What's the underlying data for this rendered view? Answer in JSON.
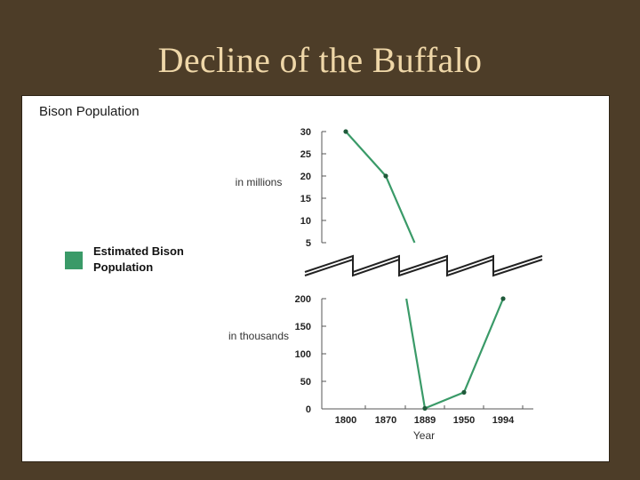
{
  "slide": {
    "title": "Decline of the Buffalo"
  },
  "colors": {
    "background": "#4d3d28",
    "title": "#efd7a8",
    "series": "#3a9a68"
  },
  "chart_data": {
    "type": "line",
    "title": "Bison Population",
    "xlabel": "Year",
    "x_categories": [
      "1800",
      "1870",
      "1889",
      "1950",
      "1994"
    ],
    "legend": {
      "label": "Estimated Bison Population",
      "placement": "left"
    },
    "axis_break": true,
    "upper_panel": {
      "unit_label": "in millions",
      "yticks": [
        "30",
        "25",
        "20",
        "15",
        "10",
        "5"
      ],
      "ylim": [
        5,
        30
      ],
      "points": [
        {
          "x": "1800",
          "y": 30
        },
        {
          "x": "1870",
          "y": 20
        }
      ],
      "line_continues_to": {
        "x": 1884,
        "y": 5
      }
    },
    "lower_panel": {
      "unit_label": "in thousands",
      "yticks": [
        "200",
        "150",
        "100",
        "50",
        "0"
      ],
      "ylim": [
        0,
        200
      ],
      "line_enters_from": {
        "x": 1880,
        "y": 200
      },
      "points": [
        {
          "x": "1889",
          "y": 1
        },
        {
          "x": "1950",
          "y": 30
        },
        {
          "x": "1994",
          "y": 200
        }
      ]
    },
    "series": [
      {
        "name": "Estimated Bison Population"
      }
    ]
  }
}
